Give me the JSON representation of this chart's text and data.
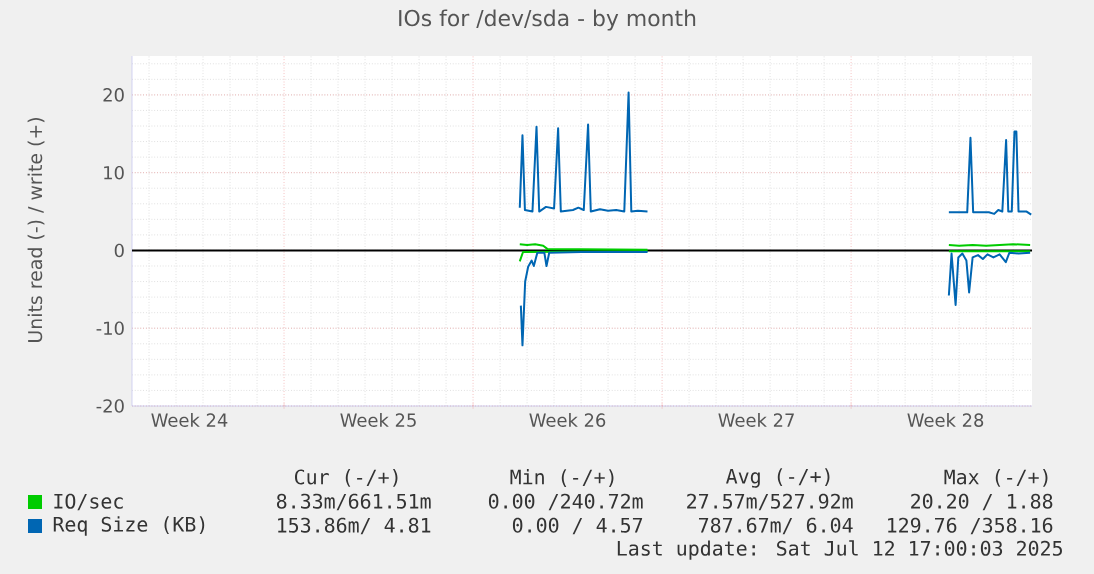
{
  "chart_data": {
    "type": "line",
    "title": "IOs for /dev/sda - by month",
    "ylabel": "Units read (-) / write (+)",
    "xlim": [
      "2025-06-09T08:53",
      "2025-07-12T16:48"
    ],
    "ylim": [
      -20,
      25
    ],
    "xticks": [
      {
        "value": "2025-06-11T12:00",
        "label": "Week 24"
      },
      {
        "value": "2025-06-15",
        "label": null
      },
      {
        "value": "2025-06-18T12:00",
        "label": "Week 25"
      },
      {
        "value": "2025-06-22",
        "label": null
      },
      {
        "value": "2025-06-25T12:00",
        "label": "Week 26"
      },
      {
        "value": "2025-06-29",
        "label": null
      },
      {
        "value": "2025-07-02T12:00",
        "label": "Week 27"
      },
      {
        "value": "2025-07-06",
        "label": null
      },
      {
        "value": "2025-07-09T12:00",
        "label": "Week 28"
      }
    ],
    "yticks": [
      -20,
      -10,
      0,
      10,
      20
    ],
    "grid": true,
    "legend": "bottom",
    "marker": "none",
    "line_style": "solid",
    "ref_lines": [
      {
        "axis": "y",
        "value": 0,
        "color": "#000000"
      }
    ],
    "series": [
      {
        "name": "IO/sec",
        "color": "#00cc00",
        "x": [
          "2025-06-23T17:31",
          "2025-06-24T00:00",
          "2025-06-24T07:12",
          "2025-06-24T14:24",
          "2025-06-24T18:00",
          "2025-06-28T11:02",
          "2025-07-03T00:00",
          "2025-07-09T14:53",
          "2025-07-10T00:00",
          "2025-07-10T12:00",
          "2025-07-11T00:00",
          "2025-07-11T12:00",
          "2025-07-12T00:00",
          "2025-07-12T15:07"
        ],
        "values": [
          0.8,
          0.7,
          0.8,
          0.6,
          0.2,
          0.1,
          null,
          0.7,
          0.6,
          0.7,
          0.6,
          0.7,
          0.8,
          0.7
        ]
      },
      {
        "color": "#00cc00",
        "x": [
          "2025-06-23T17:31",
          "2025-06-23T20:24",
          "2025-06-28T11:02",
          "2025-07-03T00:00",
          "2025-07-09T14:53",
          "2025-07-12T15:07"
        ],
        "values": [
          -1.4,
          -0.2,
          -0.1,
          null,
          -0.1,
          -0.1
        ]
      },
      {
        "name": "Req Size (KB)",
        "color": "#0066b3",
        "x": [
          "2025-06-23T17:31",
          "2025-06-23T19:55",
          "2025-06-23T22:05",
          "2025-06-24T04:48",
          "2025-06-24T08:24",
          "2025-06-24T10:48",
          "2025-06-24T16:48",
          "2025-06-25T00:00",
          "2025-06-25T03:36",
          "2025-06-25T06:00",
          "2025-06-25T16:48",
          "2025-06-25T21:36",
          "2025-06-26T02:24",
          "2025-06-26T06:14",
          "2025-06-26T08:38",
          "2025-06-26T16:48",
          "2025-06-27T00:00",
          "2025-06-27T07:12",
          "2025-06-27T14:24",
          "2025-06-27T18:14",
          "2025-06-27T20:38",
          "2025-06-28T02:24",
          "2025-06-28T11:02",
          "2025-07-03T00:00",
          "2025-07-09T14:53",
          "2025-07-10T07:12",
          "2025-07-10T10:05",
          "2025-07-10T12:29",
          "2025-07-11T02:24",
          "2025-07-11T07:12",
          "2025-07-11T10:48",
          "2025-07-11T14:24",
          "2025-07-11T17:46",
          "2025-07-11T19:41",
          "2025-07-11T22:48",
          "2025-07-12T01:12",
          "2025-07-12T02:53",
          "2025-07-12T04:48",
          "2025-07-12T12:00",
          "2025-07-12T16:05"
        ],
        "values": [
          5.5,
          14.8,
          5.2,
          5.0,
          15.9,
          5.0,
          5.6,
          5.4,
          15.7,
          5.0,
          5.2,
          5.5,
          5.2,
          16.2,
          5.0,
          5.3,
          5.1,
          5.2,
          5.0,
          20.3,
          5.0,
          5.1,
          5.0,
          null,
          4.9,
          4.9,
          14.5,
          4.9,
          4.9,
          4.7,
          5.2,
          5.0,
          14.2,
          5.0,
          5.0,
          15.3,
          15.3,
          5.0,
          5.0,
          4.6
        ]
      },
      {
        "color": "#0066b3",
        "x": [
          "2025-06-23T18:29",
          "2025-06-23T19:55",
          "2025-06-23T22:19",
          "2025-06-24T00:58",
          "2025-06-24T04:05",
          "2025-06-24T06:00",
          "2025-06-24T09:07",
          "2025-06-24T15:22",
          "2025-06-24T17:17",
          "2025-06-24T19:41",
          "2025-06-26T00:00",
          "2025-06-28T11:02",
          "2025-07-03T00:00",
          "2025-07-09T14:53",
          "2025-07-09T17:17",
          "2025-07-09T20:53",
          "2025-07-09T23:17",
          "2025-07-10T02:53",
          "2025-07-10T06:29",
          "2025-07-10T08:53",
          "2025-07-10T12:00",
          "2025-07-10T16:48",
          "2025-07-10T21:07",
          "2025-07-11T01:12",
          "2025-07-11T06:29",
          "2025-07-11T12:00",
          "2025-07-11T17:31",
          "2025-07-11T20:38",
          "2025-07-12T04:48",
          "2025-07-12T15:07"
        ],
        "values": [
          -7.1,
          -12.2,
          -4.0,
          -2.1,
          -1.3,
          -2.0,
          -0.3,
          -0.3,
          -2.0,
          -0.3,
          -0.2,
          -0.2,
          null,
          -5.8,
          -0.4,
          -7.0,
          -0.9,
          -0.4,
          -1.3,
          -5.4,
          -0.9,
          -0.6,
          -1.1,
          -0.5,
          -0.9,
          -0.5,
          -1.5,
          -0.3,
          -0.4,
          -0.3
        ]
      }
    ],
    "annotations": [
      "Cur (-/+)",
      "Min (-/+)",
      "Avg (-/+)",
      "Max (-/+)",
      "8.33m/661.51m",
      "0.00 /240.72m",
      "27.57m/527.92m",
      "20.20 /  1.88",
      "153.86m/   4.81",
      "0.00 /  4.57",
      "787.67m/  6.04",
      "129.76 /358.16",
      "Last update: Sat Jul 12 17:00:03 2025"
    ]
  }
}
